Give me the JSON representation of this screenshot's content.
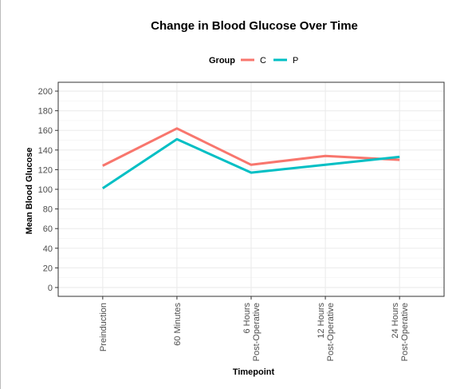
{
  "chart_data": {
    "type": "line",
    "title": "Change in Blood Glucose Over Time",
    "xlabel": "Timepoint",
    "ylabel": "Mean Blood Glucose",
    "categories": [
      [
        "Preinduction"
      ],
      [
        "60 Minutes"
      ],
      [
        "6 Hours",
        "Post-Operative"
      ],
      [
        "12 Hours",
        "Post-Operative"
      ],
      [
        "24 Hours",
        "Post-Operative"
      ]
    ],
    "ylim": [
      0,
      200
    ],
    "yticks": [
      0,
      20,
      40,
      60,
      80,
      100,
      120,
      140,
      160,
      180,
      200
    ],
    "grid": true,
    "legend": {
      "title": "Group",
      "position": "top"
    },
    "series": [
      {
        "name": "C",
        "color": "#F8766D",
        "values": [
          124,
          162,
          125,
          134,
          130
        ]
      },
      {
        "name": "P",
        "color": "#00BFC4",
        "values": [
          101,
          151,
          117,
          125,
          133
        ]
      }
    ]
  }
}
